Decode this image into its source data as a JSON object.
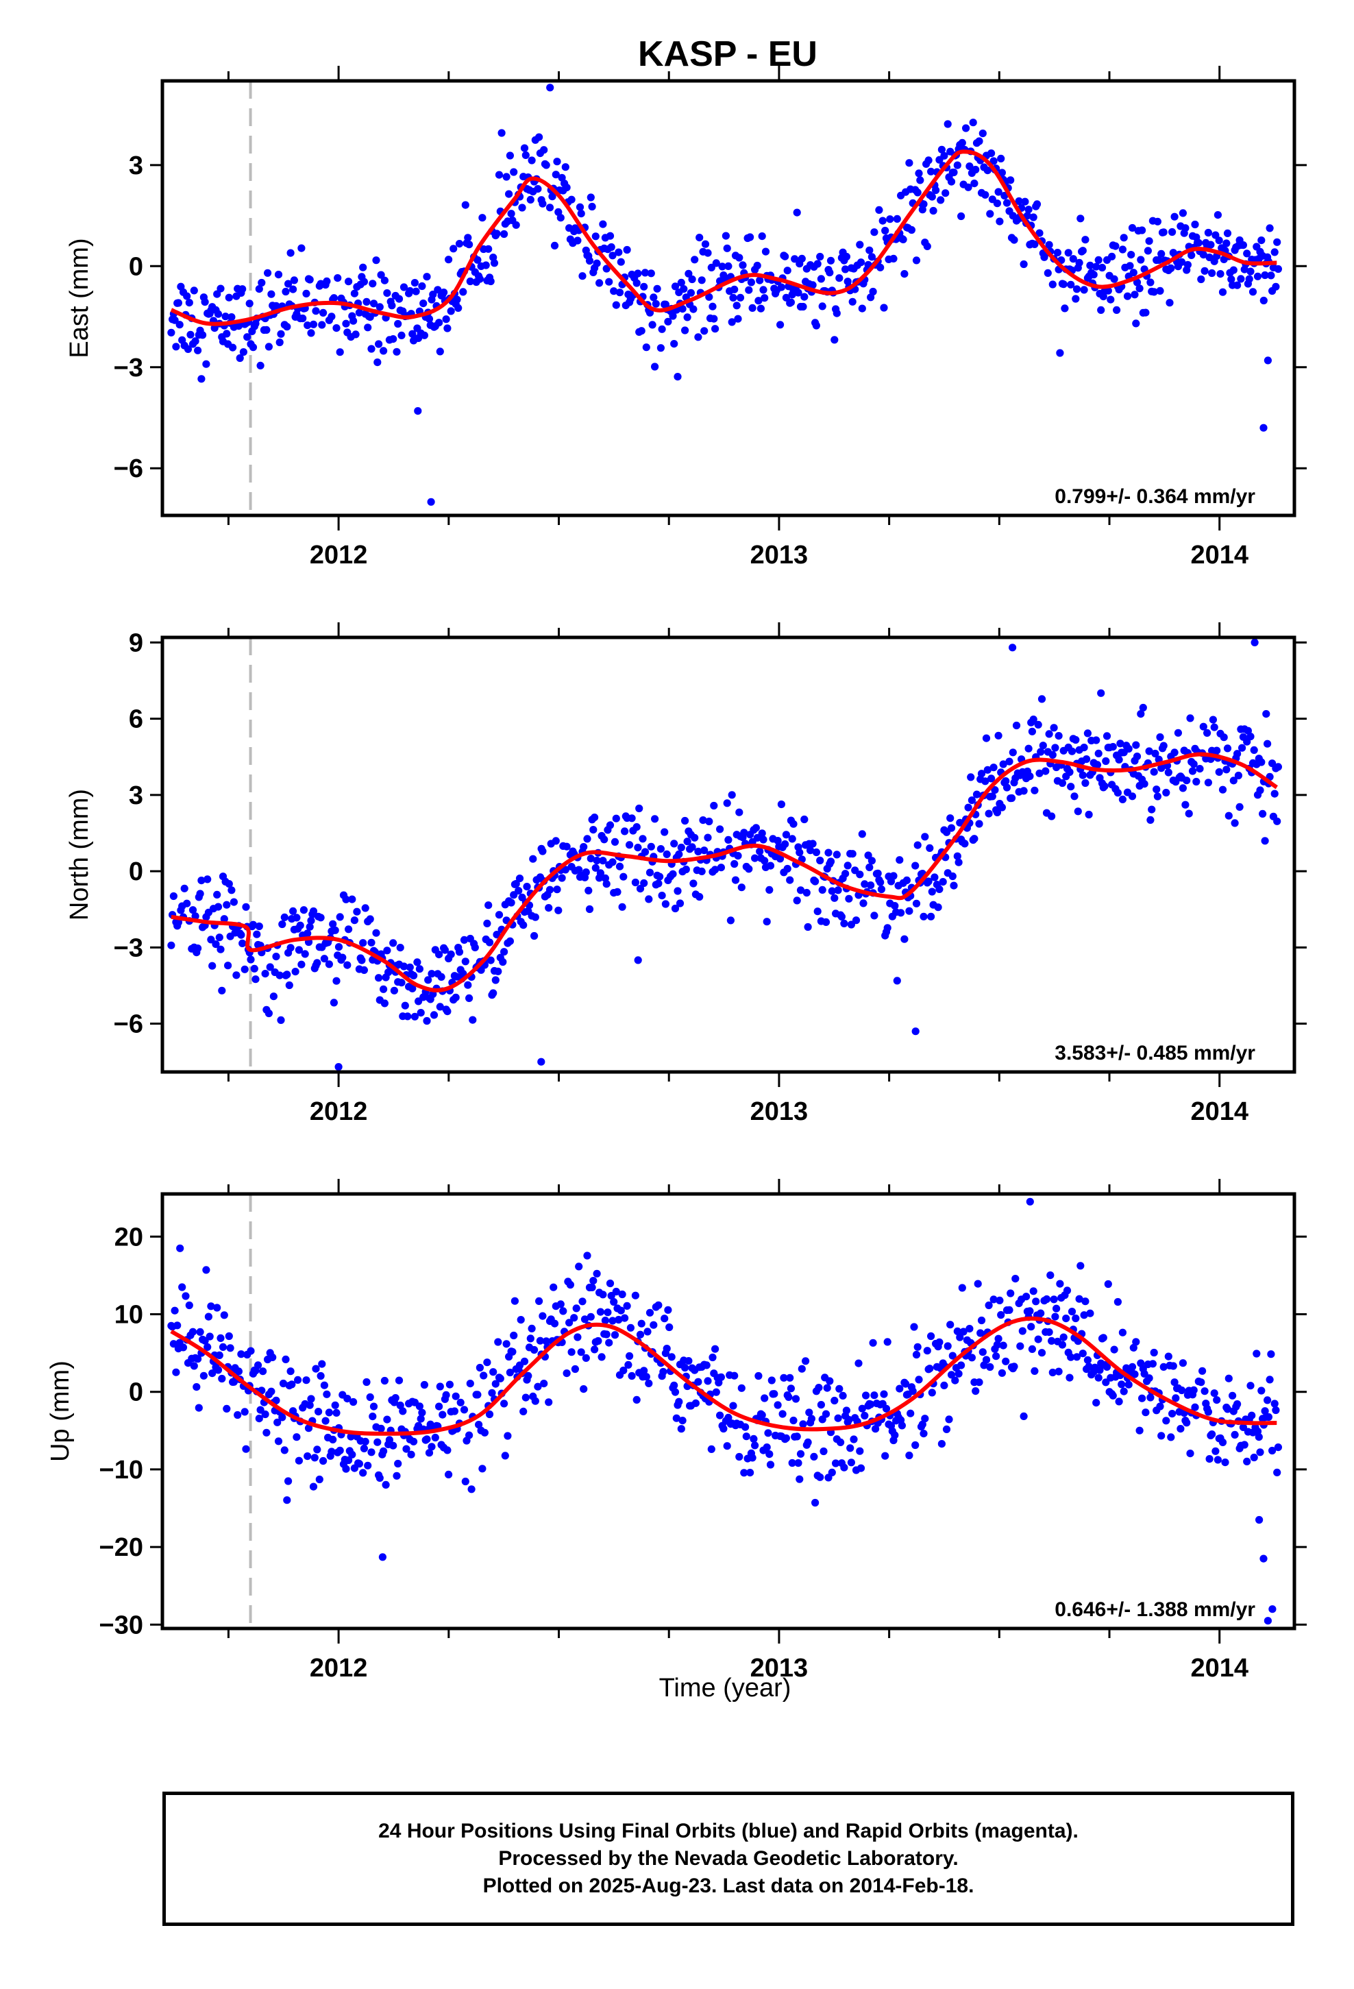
{
  "chart_data": {
    "type": "scatter",
    "title": "KASP - EU",
    "xlabel": "Time (year)",
    "xlim": [
      2011.6,
      2014.17
    ],
    "x_ticks": [
      "2012",
      "2013",
      "2014"
    ],
    "grid": false,
    "colors": {
      "points": "#0000ff",
      "fit": "#ff0000",
      "event_line": "#bbbbbb",
      "frame": "#000000"
    },
    "event_line_x": 2011.8,
    "panels": [
      {
        "name": "east",
        "ylabel": "East (mm)",
        "ylim": [
          -7.4,
          5.5
        ],
        "y_ticks": [
          -6,
          -3,
          0,
          3
        ],
        "y_tick_labels": [
          "−6",
          "−3",
          "0",
          "3"
        ],
        "rate_label": "0.799+/- 0.364 mm/yr",
        "fit": [
          [
            2011.62,
            -1.3
          ],
          [
            2011.7,
            -1.7
          ],
          [
            2011.79,
            -1.6
          ],
          [
            2011.9,
            -1.2
          ],
          [
            2012.0,
            -1.1
          ],
          [
            2012.1,
            -1.4
          ],
          [
            2012.17,
            -1.5
          ],
          [
            2012.25,
            -1.0
          ],
          [
            2012.32,
            0.6
          ],
          [
            2012.4,
            2.0
          ],
          [
            2012.44,
            2.6
          ],
          [
            2012.5,
            2.1
          ],
          [
            2012.58,
            0.6
          ],
          [
            2012.66,
            -0.6
          ],
          [
            2012.72,
            -1.3
          ],
          [
            2012.8,
            -1.0
          ],
          [
            2012.92,
            -0.3
          ],
          [
            2013.0,
            -0.4
          ],
          [
            2013.12,
            -0.8
          ],
          [
            2013.2,
            -0.2
          ],
          [
            2013.3,
            1.6
          ],
          [
            2013.38,
            3.0
          ],
          [
            2013.42,
            3.4
          ],
          [
            2013.48,
            3.0
          ],
          [
            2013.56,
            1.3
          ],
          [
            2013.64,
            0.0
          ],
          [
            2013.72,
            -0.6
          ],
          [
            2013.8,
            -0.4
          ],
          [
            2013.88,
            0.1
          ],
          [
            2013.94,
            0.5
          ],
          [
            2014.0,
            0.4
          ],
          [
            2014.06,
            0.1
          ],
          [
            2014.13,
            0.1
          ]
        ],
        "scatter_sd": 0.65,
        "outliers": [
          [
            2012.21,
            -7.0
          ],
          [
            2014.1,
            -4.8
          ],
          [
            2012.48,
            5.3
          ],
          [
            2012.18,
            -4.3
          ],
          [
            2014.11,
            -2.8
          ]
        ]
      },
      {
        "name": "north",
        "ylabel": "North (mm)",
        "ylim": [
          -7.9,
          9.2
        ],
        "y_ticks": [
          -6,
          -3,
          0,
          3,
          6,
          9
        ],
        "y_tick_labels": [
          "−6",
          "−3",
          "0",
          "3",
          "6",
          "9"
        ],
        "rate_label": "3.583+/- 0.485 mm/yr",
        "fit": [
          [
            2011.62,
            -1.8
          ],
          [
            2011.7,
            -2.0
          ],
          [
            2011.79,
            -2.2
          ],
          [
            2011.8,
            -3.1
          ],
          [
            2011.9,
            -2.7
          ],
          [
            2012.0,
            -2.7
          ],
          [
            2012.1,
            -3.5
          ],
          [
            2012.18,
            -4.5
          ],
          [
            2012.25,
            -4.6
          ],
          [
            2012.33,
            -3.5
          ],
          [
            2012.4,
            -1.8
          ],
          [
            2012.48,
            -0.2
          ],
          [
            2012.56,
            0.7
          ],
          [
            2012.65,
            0.6
          ],
          [
            2012.75,
            0.4
          ],
          [
            2012.85,
            0.6
          ],
          [
            2012.95,
            1.0
          ],
          [
            2013.05,
            0.3
          ],
          [
            2013.15,
            -0.6
          ],
          [
            2013.25,
            -1.0
          ],
          [
            2013.3,
            -0.8
          ],
          [
            2013.4,
            1.3
          ],
          [
            2013.48,
            3.3
          ],
          [
            2013.56,
            4.3
          ],
          [
            2013.64,
            4.3
          ],
          [
            2013.72,
            4.0
          ],
          [
            2013.8,
            4.0
          ],
          [
            2013.88,
            4.3
          ],
          [
            2013.96,
            4.6
          ],
          [
            2014.05,
            4.2
          ],
          [
            2014.13,
            3.3
          ]
        ],
        "scatter_sd": 0.9,
        "outliers": [
          [
            2012.0,
            -7.7
          ],
          [
            2012.46,
            -7.5
          ],
          [
            2013.31,
            -6.3
          ],
          [
            2013.53,
            8.8
          ],
          [
            2014.08,
            9.0
          ],
          [
            2012.68,
            -3.5
          ]
        ]
      },
      {
        "name": "up",
        "ylabel": "Up (mm)",
        "ylim": [
          -30.5,
          25.5
        ],
        "y_ticks": [
          -30,
          -20,
          -10,
          0,
          10,
          20
        ],
        "y_tick_labels": [
          "−30",
          "−20",
          "−10",
          "0",
          "10",
          "20"
        ],
        "rate_label": "0.646+/- 1.388 mm/yr",
        "fit": [
          [
            2011.62,
            7.8
          ],
          [
            2011.7,
            5.0
          ],
          [
            2011.8,
            0.5
          ],
          [
            2011.9,
            -3.3
          ],
          [
            2012.0,
            -5.0
          ],
          [
            2012.1,
            -5.4
          ],
          [
            2012.22,
            -5.0
          ],
          [
            2012.32,
            -3.0
          ],
          [
            2012.42,
            2.5
          ],
          [
            2012.52,
            7.5
          ],
          [
            2012.6,
            8.6
          ],
          [
            2012.68,
            6.5
          ],
          [
            2012.8,
            1.0
          ],
          [
            2012.9,
            -2.8
          ],
          [
            2013.0,
            -4.5
          ],
          [
            2013.1,
            -4.8
          ],
          [
            2013.2,
            -4.0
          ],
          [
            2013.3,
            -1.0
          ],
          [
            2013.42,
            5.0
          ],
          [
            2013.52,
            8.8
          ],
          [
            2013.6,
            9.3
          ],
          [
            2013.68,
            7.2
          ],
          [
            2013.78,
            2.5
          ],
          [
            2013.88,
            -1.0
          ],
          [
            2013.98,
            -3.5
          ],
          [
            2014.06,
            -4.0
          ],
          [
            2014.13,
            -4.0
          ]
        ],
        "scatter_sd": 3.6,
        "outliers": [
          [
            2014.11,
            -29.5
          ],
          [
            2014.12,
            -28.0
          ],
          [
            2014.1,
            -21.5
          ],
          [
            2014.09,
            -16.5
          ],
          [
            2013.57,
            24.5
          ],
          [
            2012.1,
            -21.3
          ],
          [
            2011.64,
            18.5
          ]
        ]
      }
    ]
  },
  "footer": {
    "line1": "24 Hour Positions Using Final Orbits (blue) and Rapid Orbits (magenta).",
    "line2": "Processed by the Nevada Geodetic Laboratory.",
    "line3": "Plotted on 2025-Aug-23. Last data on 2014-Feb-18."
  }
}
